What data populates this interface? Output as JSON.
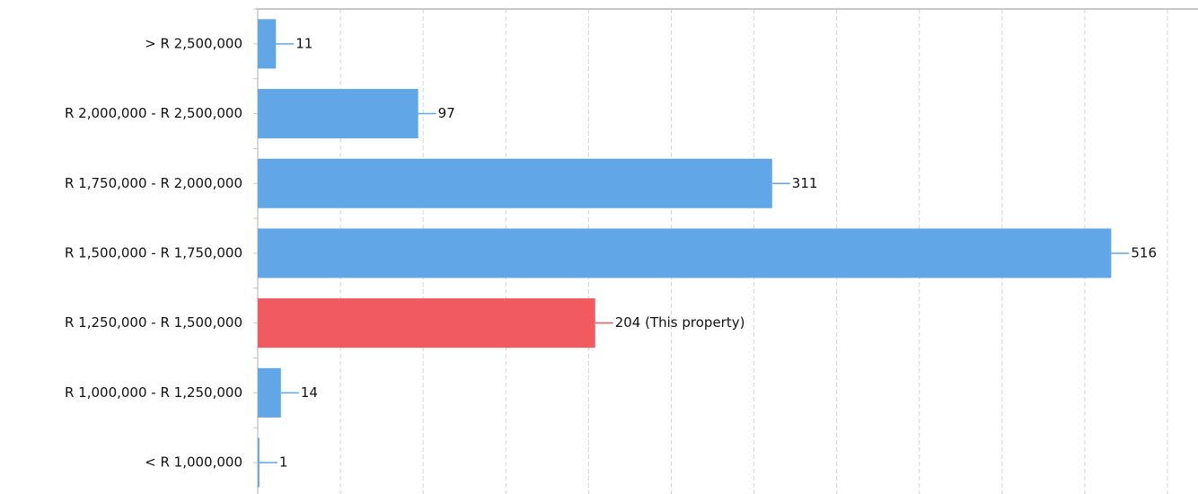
{
  "chart_data": {
    "type": "bar",
    "orientation": "horizontal",
    "categories": [
      "> R 2,500,000",
      "R 2,000,000 - R 2,500,000",
      "R 1,750,000 - R 2,000,000",
      "R 1,500,000 - R 1,750,000",
      "R 1,250,000 - R 1,500,000",
      "R 1,000,000 - R 1,250,000",
      "< R 1,000,000"
    ],
    "values": [
      11,
      97,
      311,
      516,
      204,
      14,
      1
    ],
    "value_labels": [
      "11",
      "97",
      "311",
      "516",
      "204 (This property)",
      "14",
      "1"
    ],
    "colors": [
      "#61a6e6",
      "#61a6e6",
      "#61a6e6",
      "#61a6e6",
      "#f05a60",
      "#61a6e6",
      "#61a6e6"
    ],
    "xlim": [
      0,
      550
    ],
    "xticks": [
      0,
      50,
      100,
      150,
      200,
      250,
      300,
      350,
      400,
      450,
      500,
      550
    ],
    "grid": true
  }
}
